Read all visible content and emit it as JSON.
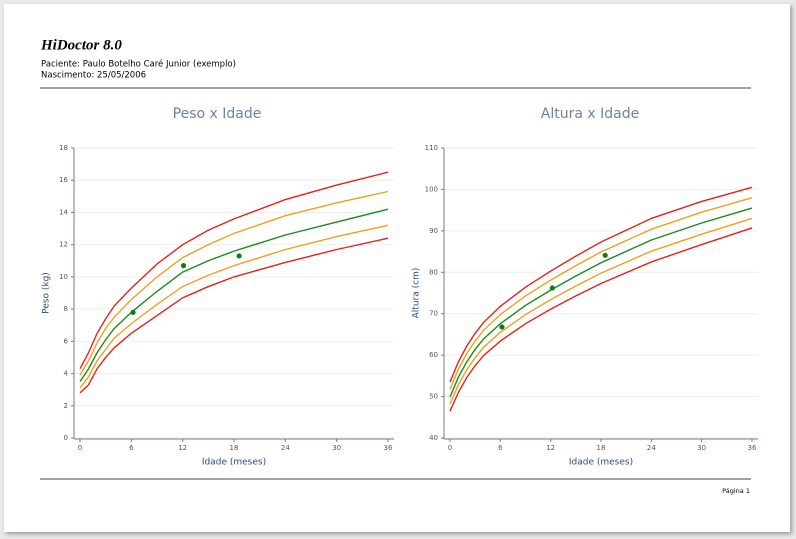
{
  "header": {
    "title": "HiDoctor 8.0",
    "patient": "Paciente:  Paulo Botelho Caré Junior (exemplo)",
    "birth": "Nascimento:  25/05/2006"
  },
  "footer": {
    "page": "Página  1"
  },
  "chart_data": [
    {
      "type": "line",
      "title": "Peso x Idade",
      "xlabel": "Idade (meses)",
      "ylabel": "Peso (kg)",
      "x": [
        0,
        1,
        2,
        3,
        4,
        6,
        9,
        12,
        15,
        18,
        24,
        30,
        36
      ],
      "xlim": [
        0,
        36
      ],
      "xticks": [
        0,
        6,
        12,
        18,
        24,
        30,
        36
      ],
      "ylim": [
        0,
        18
      ],
      "yticks": [
        0,
        2,
        4,
        6,
        8,
        10,
        12,
        14,
        16,
        18
      ],
      "grid": true,
      "series": [
        {
          "color": "#e8201c",
          "values": [
            4.3,
            5.3,
            6.5,
            7.4,
            8.2,
            9.3,
            10.8,
            12.0,
            12.9,
            13.6,
            14.8,
            15.7,
            16.5
          ]
        },
        {
          "color": "#f0a020",
          "values": [
            3.9,
            4.8,
            5.9,
            6.8,
            7.5,
            8.6,
            10.0,
            11.2,
            12.0,
            12.7,
            13.8,
            14.6,
            15.3
          ]
        },
        {
          "color": "#1a8a1a",
          "values": [
            3.5,
            4.3,
            5.3,
            6.1,
            6.8,
            7.8,
            9.1,
            10.3,
            11.0,
            11.6,
            12.6,
            13.4,
            14.2
          ]
        },
        {
          "color": "#f0a020",
          "values": [
            3.1,
            3.8,
            4.8,
            5.5,
            6.2,
            7.1,
            8.3,
            9.4,
            10.1,
            10.7,
            11.7,
            12.5,
            13.2
          ]
        },
        {
          "color": "#e8201c",
          "values": [
            2.8,
            3.3,
            4.3,
            5.0,
            5.6,
            6.5,
            7.6,
            8.7,
            9.4,
            10.0,
            10.9,
            11.7,
            12.4
          ]
        }
      ],
      "points": {
        "color": "#137a13",
        "x": [
          6.2,
          12.1,
          18.6
        ],
        "y": [
          7.8,
          10.7,
          11.3
        ]
      }
    },
    {
      "type": "line",
      "title": "Altura x Idade",
      "xlabel": "Idade (meses)",
      "ylabel": "Altura (cm)",
      "x": [
        0,
        1,
        2,
        3,
        4,
        6,
        9,
        12,
        15,
        18,
        24,
        30,
        36
      ],
      "xlim": [
        0,
        36
      ],
      "xticks": [
        0,
        6,
        12,
        18,
        24,
        30,
        36
      ],
      "ylim": [
        40,
        110
      ],
      "yticks": [
        40,
        50,
        60,
        70,
        80,
        90,
        100,
        110
      ],
      "grid": true,
      "series": [
        {
          "color": "#e8201c",
          "values": [
            53.5,
            58.4,
            62.2,
            65.3,
            67.9,
            71.8,
            76.4,
            80.3,
            83.9,
            87.3,
            93.0,
            97.1,
            100.5
          ]
        },
        {
          "color": "#f0a020",
          "values": [
            51.8,
            56.6,
            60.4,
            63.4,
            66.0,
            69.8,
            74.3,
            78.1,
            81.6,
            84.9,
            90.4,
            94.5,
            98.0
          ]
        },
        {
          "color": "#1a8a1a",
          "values": [
            49.9,
            54.7,
            58.4,
            61.4,
            63.9,
            67.6,
            72.0,
            75.7,
            79.1,
            82.3,
            87.8,
            91.9,
            95.5
          ]
        },
        {
          "color": "#f0a020",
          "values": [
            48.2,
            52.9,
            56.5,
            59.4,
            61.9,
            65.5,
            69.8,
            73.4,
            76.7,
            79.8,
            85.1,
            89.2,
            93.0
          ]
        },
        {
          "color": "#e8201c",
          "values": [
            46.5,
            51.0,
            54.6,
            57.5,
            59.9,
            63.4,
            67.6,
            71.1,
            74.3,
            77.3,
            82.5,
            86.7,
            90.7
          ]
        }
      ],
      "points": {
        "color": "#137a13",
        "x": [
          6.2,
          12.2,
          18.5
        ],
        "y": [
          66.8,
          76.2,
          84.1
        ]
      }
    }
  ]
}
